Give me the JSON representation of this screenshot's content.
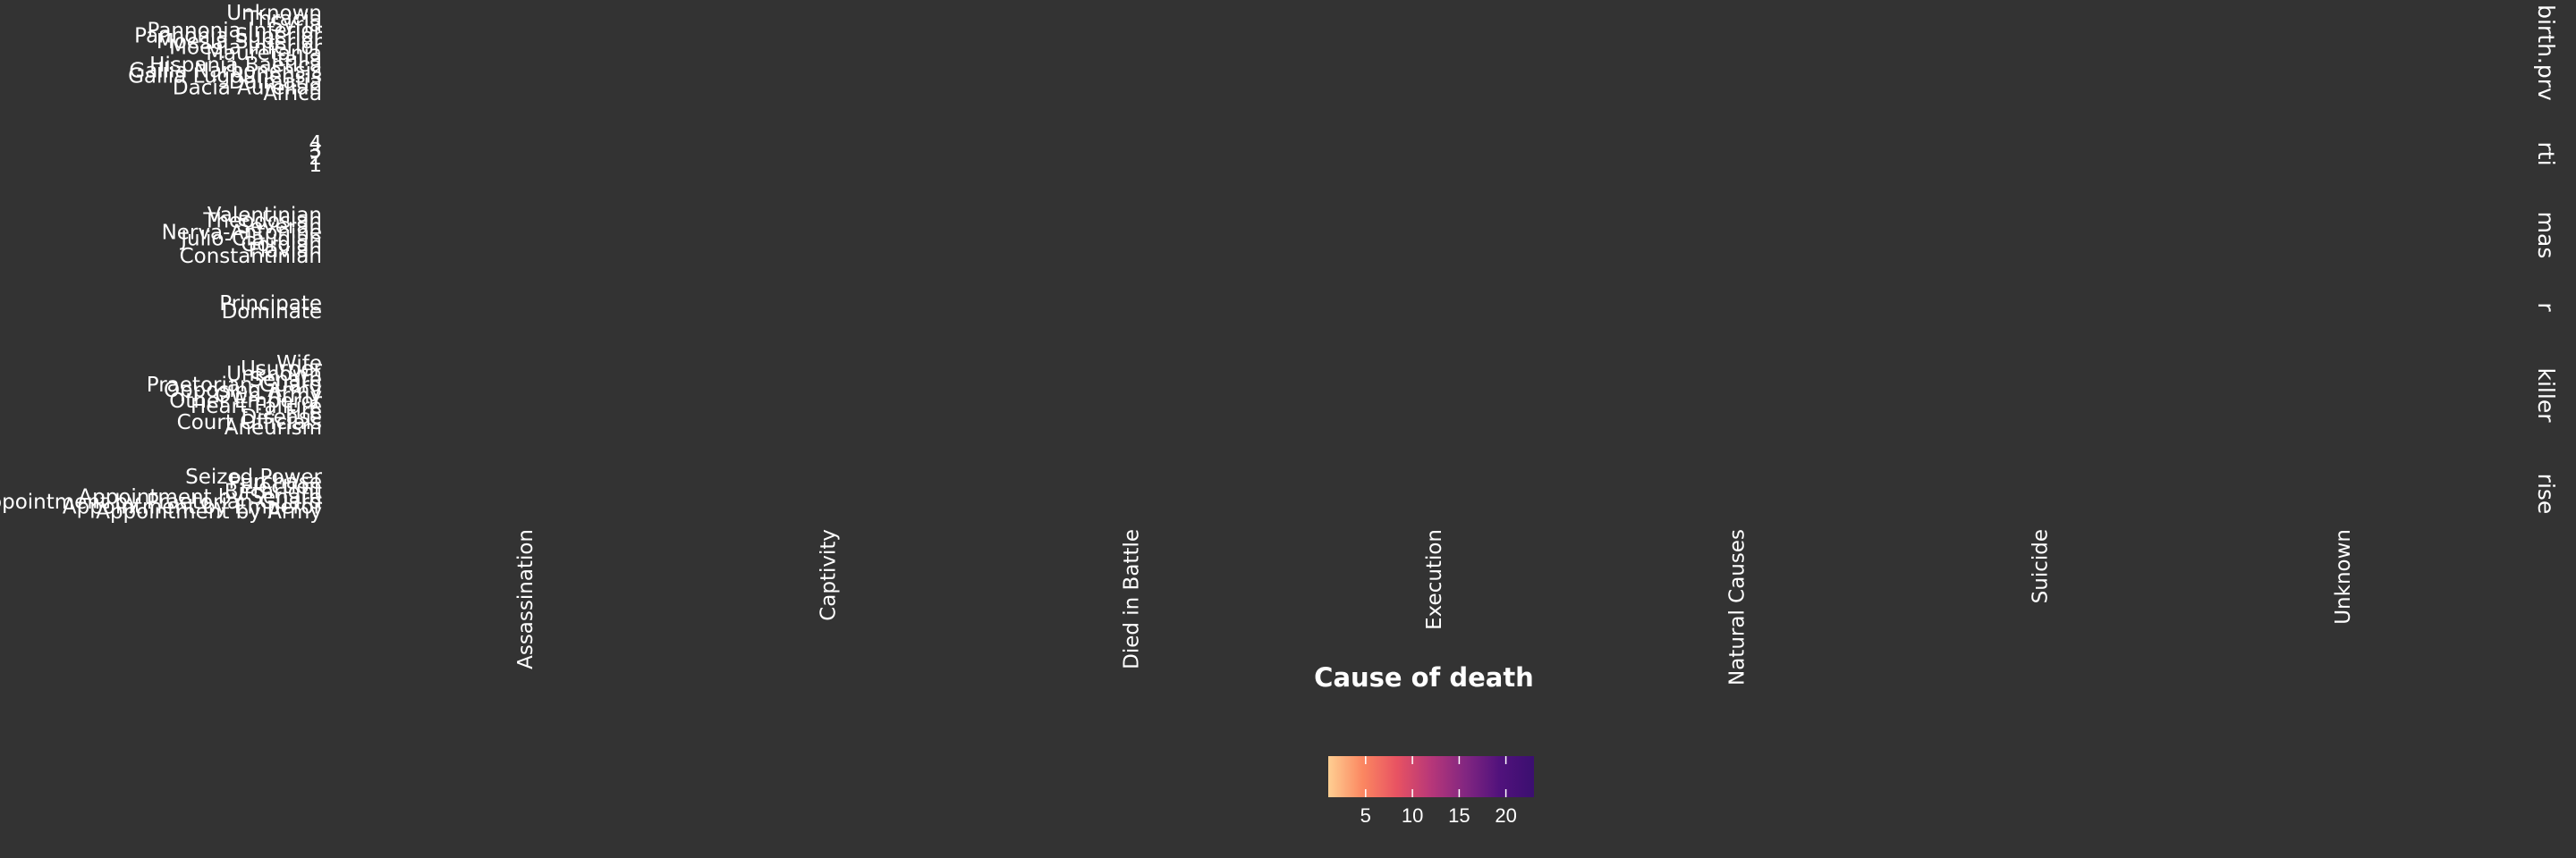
{
  "chart_data": {
    "type": "heatmap",
    "xlabel": "Cause of death",
    "x_categories": [
      "Assassination",
      "Captivity",
      "Died in Battle",
      "Execution",
      "Natural Causes",
      "Suicide",
      "Unknown"
    ],
    "facets": [
      {
        "strip": "birth.prv",
        "rows": [
          "Unknown",
          "Thracia",
          "Syria",
          "Pannonia Inferior",
          "Pannonia Superior",
          "Moesia Superior",
          "Moesia Inferior",
          "Mauretania",
          "Italia",
          "Hispania Baetica",
          "Gallia Narbonensis",
          "Gallia Lugdunensis",
          "Dalmatia",
          "Dacia Aurelian",
          "Africa"
        ]
      },
      {
        "strip": "rti",
        "rows": [
          "4",
          "3",
          "2",
          "1"
        ]
      },
      {
        "strip": "mas",
        "rows": [
          "Valentinian",
          "Theodosian",
          "Severan",
          "Nerva-Antonine",
          "Julio-Claudian",
          "Gordian",
          "Flavian",
          "Constantinian"
        ]
      },
      {
        "strip": "r",
        "rows": [
          "Principate",
          "Dominate"
        ]
      },
      {
        "strip": "killer",
        "rows": [
          "Wife",
          "Usurper",
          "Unknown",
          "Senate",
          "Praetorian Guard",
          "Opposing Army",
          "Own Army",
          "Other Emperor",
          "Heart Failure",
          "Fire",
          "Disease",
          "Court Officials",
          "Aneurism"
        ]
      },
      {
        "strip": "rise",
        "rows": [
          "Seized Power",
          "Purchase",
          "Election",
          "Birthright",
          "Appointment by Senate",
          "Appointment by Praetorian Guard",
          "Appointment by Emperor",
          "Appointment by Army"
        ]
      }
    ],
    "colorbar": {
      "palette": "magma",
      "colors": [
        "#fecf92",
        "#fb8761",
        "#e85362",
        "#b73779",
        "#822681",
        "#51127c",
        "#3b0f70"
      ],
      "ticks": [
        5,
        10,
        15,
        20
      ],
      "range": [
        1,
        23
      ]
    }
  }
}
